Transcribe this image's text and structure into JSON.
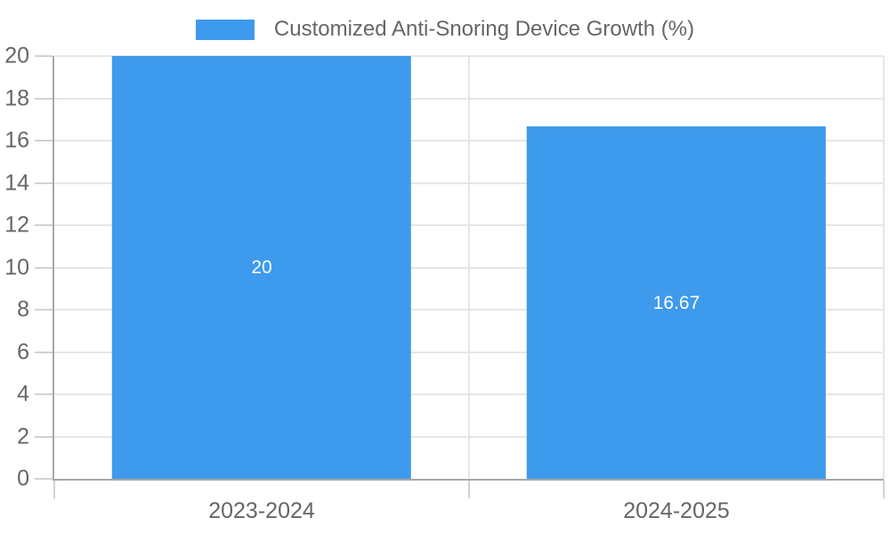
{
  "chart_data": {
    "type": "bar",
    "title": "Customized Anti-Snoring Device Growth (%)",
    "categories": [
      "2023-2024",
      "2024-2025"
    ],
    "values": [
      20,
      16.67
    ],
    "value_labels": [
      "20",
      "16.67"
    ],
    "xlabel": "",
    "ylabel": "",
    "ylim": [
      0,
      20
    ],
    "ytick_step": 2,
    "ytick_labels": [
      "0",
      "2",
      "4",
      "6",
      "8",
      "10",
      "12",
      "14",
      "16",
      "18",
      "20"
    ],
    "grid": true,
    "legend_position": "top",
    "bar_fraction": 0.722,
    "colors": {
      "bar": "#3E9AEC",
      "bar_label": "#ffffff",
      "text": "#666666",
      "grid": "#e6e6e6",
      "tick": "#d2d2d2",
      "axis": "#a8a8a8"
    }
  }
}
